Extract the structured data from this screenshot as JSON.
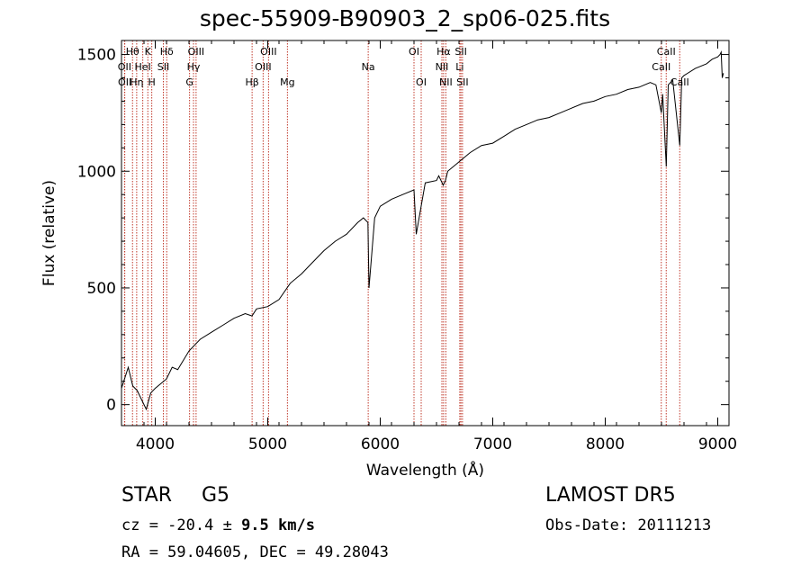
{
  "title": "spec-55909-B90903_2_sp06-025.fits",
  "info": {
    "object_class": "STAR",
    "subclass": "G5",
    "survey": "LAMOST DR5",
    "cz_prefix": "cz = -20.4 ± ",
    "cz_error": "9.5 km/s",
    "obs_date": "Obs-Date: 20111213",
    "radec": "RA =  59.04605, DEC =  49.28043"
  },
  "colors": {
    "line": "#000000",
    "lines_marker": "#c0392b",
    "axis": "#000000"
  },
  "chart_data": {
    "type": "line",
    "xlabel": "Wavelength (Å)",
    "ylabel": "Flux (relative)",
    "xlim": [
      3700,
      9100
    ],
    "ylim": [
      -90,
      1560
    ],
    "xticks": [
      4000,
      5000,
      6000,
      7000,
      8000,
      9000
    ],
    "yticks": [
      0,
      500,
      1000,
      1500
    ],
    "grid": false,
    "series": [
      {
        "x": [
          3700,
          3760,
          3800,
          3840,
          3880,
          3920,
          3960,
          4000,
          4050,
          4100,
          4150,
          4200,
          4300,
          4400,
          4500,
          4600,
          4700,
          4800,
          4860,
          4900,
          5000,
          5100,
          5200,
          5300,
          5400,
          5500,
          5600,
          5700,
          5800,
          5850,
          5890,
          5900,
          5950,
          6000,
          6100,
          6200,
          6300,
          6320,
          6400,
          6500,
          6520,
          6560,
          6580,
          6600,
          6700,
          6800,
          6900,
          7000,
          7100,
          7200,
          7300,
          7400,
          7500,
          7600,
          7700,
          7800,
          7900,
          8000,
          8100,
          8200,
          8300,
          8400,
          8450,
          8498,
          8510,
          8542,
          8560,
          8600,
          8662,
          8680,
          8700,
          8800,
          8900,
          8950,
          9000,
          9020,
          9030,
          9040,
          9050
        ],
        "y": [
          70,
          160,
          80,
          60,
          20,
          -20,
          50,
          70,
          90,
          110,
          160,
          150,
          230,
          280,
          310,
          340,
          370,
          390,
          380,
          410,
          420,
          450,
          520,
          560,
          610,
          660,
          700,
          730,
          780,
          800,
          780,
          500,
          800,
          850,
          880,
          900,
          920,
          730,
          950,
          960,
          980,
          940,
          960,
          1000,
          1040,
          1080,
          1110,
          1120,
          1150,
          1180,
          1200,
          1220,
          1230,
          1250,
          1270,
          1290,
          1300,
          1320,
          1330,
          1350,
          1360,
          1380,
          1370,
          1250,
          1330,
          1020,
          1370,
          1390,
          1110,
          1400,
          1410,
          1440,
          1460,
          1480,
          1490,
          1500,
          1510,
          1400,
          1420
        ]
      }
    ],
    "spectral_lines": [
      {
        "label": "Hθ",
        "wavelength": 3798,
        "row": 0
      },
      {
        "label": "OII",
        "wavelength": 3727,
        "row": 1
      },
      {
        "label": "OII",
        "wavelength": 3729,
        "row": 2
      },
      {
        "label": "Hη",
        "wavelength": 3835,
        "row": 2
      },
      {
        "label": "K",
        "wavelength": 3934,
        "row": 0
      },
      {
        "label": "HeI",
        "wavelength": 3889,
        "row": 1
      },
      {
        "label": "H",
        "wavelength": 3969,
        "row": 2
      },
      {
        "label": "Hδ",
        "wavelength": 4102,
        "row": 0
      },
      {
        "label": "SII",
        "wavelength": 4072,
        "row": 1
      },
      {
        "label": "OIII",
        "wavelength": 4363,
        "row": 0
      },
      {
        "label": "Hγ",
        "wavelength": 4340,
        "row": 1
      },
      {
        "label": "G",
        "wavelength": 4305,
        "row": 2
      },
      {
        "label": "Hβ",
        "wavelength": 4861,
        "row": 2
      },
      {
        "label": "OIII",
        "wavelength": 5007,
        "row": 0
      },
      {
        "label": "OIII",
        "wavelength": 4959,
        "row": 1
      },
      {
        "label": "Mg",
        "wavelength": 5175,
        "row": 2
      },
      {
        "label": "Na",
        "wavelength": 5893,
        "row": 1
      },
      {
        "label": "OI",
        "wavelength": 6300,
        "row": 0
      },
      {
        "label": "OI",
        "wavelength": 6364,
        "row": 2
      },
      {
        "label": "Hα",
        "wavelength": 6563,
        "row": 0
      },
      {
        "label": "NII",
        "wavelength": 6548,
        "row": 1
      },
      {
        "label": "NII",
        "wavelength": 6583,
        "row": 2
      },
      {
        "label": "SII",
        "wavelength": 6717,
        "row": 0
      },
      {
        "label": "Li",
        "wavelength": 6707,
        "row": 1
      },
      {
        "label": "SII",
        "wavelength": 6731,
        "row": 2
      },
      {
        "label": "CaII",
        "wavelength": 8542,
        "row": 0
      },
      {
        "label": "CaII",
        "wavelength": 8498,
        "row": 1
      },
      {
        "label": "CaII",
        "wavelength": 8662,
        "row": 2
      }
    ]
  }
}
